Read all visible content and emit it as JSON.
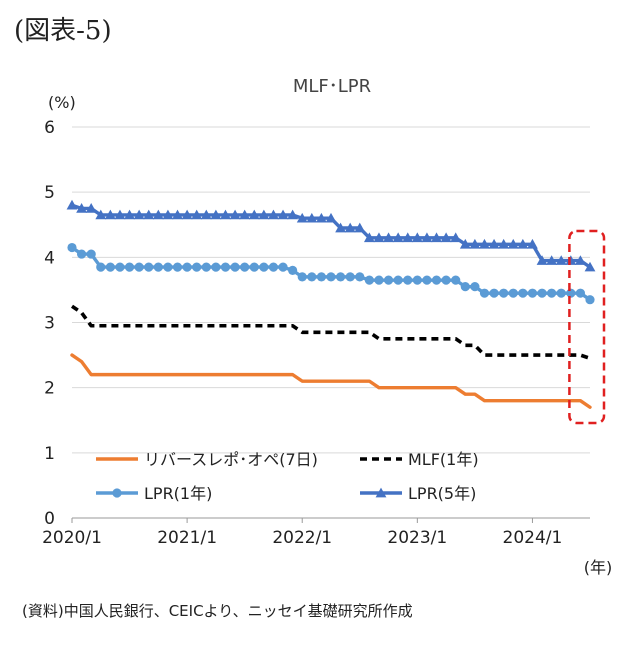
{
  "figure_label": "(図表-5)",
  "source": "(資料)中国人民銀行、CEICより、ニッセイ基礎研究所作成",
  "chart_data": {
    "type": "line",
    "title": "MLF･LPR",
    "ylabel": "(%)",
    "xlabel": "(年)",
    "ylim": [
      0,
      6
    ],
    "yticks": [
      "0",
      "1",
      "2",
      "3",
      "4",
      "5",
      "6"
    ],
    "xlim": [
      "2020-01",
      "2024-07"
    ],
    "xticks": [
      {
        "date": "2020-01",
        "label": "2020/1"
      },
      {
        "date": "2021-01",
        "label": "2021/1"
      },
      {
        "date": "2022-01",
        "label": "2022/1"
      },
      {
        "date": "2023-01",
        "label": "2023/1"
      },
      {
        "date": "2024-01",
        "label": "2024/1"
      }
    ],
    "grid": true,
    "legend_position": "bottom-inside",
    "highlight": {
      "shape": "dashed-rectangle",
      "color": "#e02020",
      "from": "2024-06",
      "to": "2024-07"
    },
    "x": [
      "2020-01",
      "2020-02",
      "2020-03",
      "2020-04",
      "2020-05",
      "2020-06",
      "2020-07",
      "2020-08",
      "2020-09",
      "2020-10",
      "2020-11",
      "2020-12",
      "2021-01",
      "2021-02",
      "2021-03",
      "2021-04",
      "2021-05",
      "2021-06",
      "2021-07",
      "2021-08",
      "2021-09",
      "2021-10",
      "2021-11",
      "2021-12",
      "2022-01",
      "2022-02",
      "2022-03",
      "2022-04",
      "2022-05",
      "2022-06",
      "2022-07",
      "2022-08",
      "2022-09",
      "2022-10",
      "2022-11",
      "2022-12",
      "2023-01",
      "2023-02",
      "2023-03",
      "2023-04",
      "2023-05",
      "2023-06",
      "2023-07",
      "2023-08",
      "2023-09",
      "2023-10",
      "2023-11",
      "2023-12",
      "2024-01",
      "2024-02",
      "2024-03",
      "2024-04",
      "2024-05",
      "2024-06",
      "2024-07"
    ],
    "series": [
      {
        "name": "リバースレポ･オペ(7日)",
        "color": "#ed7d31",
        "style": "solid",
        "marker": "none",
        "values": [
          2.5,
          2.4,
          2.2,
          2.2,
          2.2,
          2.2,
          2.2,
          2.2,
          2.2,
          2.2,
          2.2,
          2.2,
          2.2,
          2.2,
          2.2,
          2.2,
          2.2,
          2.2,
          2.2,
          2.2,
          2.2,
          2.2,
          2.2,
          2.2,
          2.1,
          2.1,
          2.1,
          2.1,
          2.1,
          2.1,
          2.1,
          2.1,
          2.0,
          2.0,
          2.0,
          2.0,
          2.0,
          2.0,
          2.0,
          2.0,
          2.0,
          1.9,
          1.9,
          1.8,
          1.8,
          1.8,
          1.8,
          1.8,
          1.8,
          1.8,
          1.8,
          1.8,
          1.8,
          1.8,
          1.7
        ]
      },
      {
        "name": "MLF(1年)",
        "color": "#000000",
        "style": "dashed",
        "marker": "none",
        "values": [
          3.25,
          3.15,
          2.95,
          2.95,
          2.95,
          2.95,
          2.95,
          2.95,
          2.95,
          2.95,
          2.95,
          2.95,
          2.95,
          2.95,
          2.95,
          2.95,
          2.95,
          2.95,
          2.95,
          2.95,
          2.95,
          2.95,
          2.95,
          2.95,
          2.85,
          2.85,
          2.85,
          2.85,
          2.85,
          2.85,
          2.85,
          2.85,
          2.75,
          2.75,
          2.75,
          2.75,
          2.75,
          2.75,
          2.75,
          2.75,
          2.75,
          2.65,
          2.65,
          2.5,
          2.5,
          2.5,
          2.5,
          2.5,
          2.5,
          2.5,
          2.5,
          2.5,
          2.5,
          2.5,
          2.45
        ]
      },
      {
        "name": "LPR(1年)",
        "color": "#5b9bd5",
        "style": "solid",
        "marker": "circle",
        "values": [
          4.15,
          4.05,
          4.05,
          3.85,
          3.85,
          3.85,
          3.85,
          3.85,
          3.85,
          3.85,
          3.85,
          3.85,
          3.85,
          3.85,
          3.85,
          3.85,
          3.85,
          3.85,
          3.85,
          3.85,
          3.85,
          3.85,
          3.85,
          3.8,
          3.7,
          3.7,
          3.7,
          3.7,
          3.7,
          3.7,
          3.7,
          3.65,
          3.65,
          3.65,
          3.65,
          3.65,
          3.65,
          3.65,
          3.65,
          3.65,
          3.65,
          3.55,
          3.55,
          3.45,
          3.45,
          3.45,
          3.45,
          3.45,
          3.45,
          3.45,
          3.45,
          3.45,
          3.45,
          3.45,
          3.35
        ]
      },
      {
        "name": "LPR(5年)",
        "color": "#4472c4",
        "style": "solid",
        "marker": "triangle",
        "values": [
          4.8,
          4.75,
          4.75,
          4.65,
          4.65,
          4.65,
          4.65,
          4.65,
          4.65,
          4.65,
          4.65,
          4.65,
          4.65,
          4.65,
          4.65,
          4.65,
          4.65,
          4.65,
          4.65,
          4.65,
          4.65,
          4.65,
          4.65,
          4.65,
          4.6,
          4.6,
          4.6,
          4.6,
          4.45,
          4.45,
          4.45,
          4.3,
          4.3,
          4.3,
          4.3,
          4.3,
          4.3,
          4.3,
          4.3,
          4.3,
          4.3,
          4.2,
          4.2,
          4.2,
          4.2,
          4.2,
          4.2,
          4.2,
          4.2,
          3.95,
          3.95,
          3.95,
          3.95,
          3.95,
          3.85
        ]
      }
    ]
  }
}
